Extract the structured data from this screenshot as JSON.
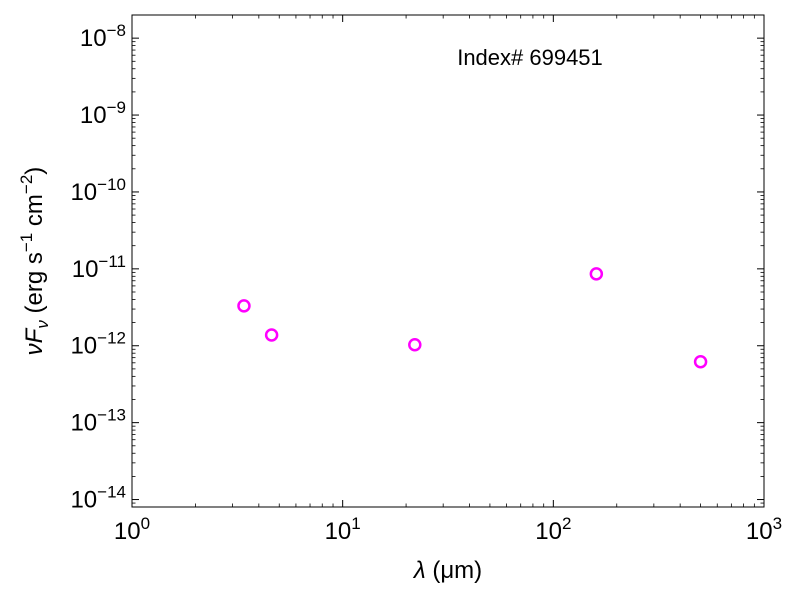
{
  "chart_data": {
    "type": "scatter",
    "annotation": "Index# 699451",
    "xlabel": {
      "symbol": "λ",
      "unit": " (μm)"
    },
    "ylabel": {
      "pre": "ν",
      "F": "F",
      "sub": "ν",
      "mid": " (erg s",
      "exp1": "−1",
      "mid2": " cm",
      "exp2": "−2",
      "post": ")"
    },
    "xscale": "log",
    "yscale": "log",
    "xlim": [
      1,
      1000
    ],
    "ylim": [
      8e-15,
      2e-08
    ],
    "xticks": [
      {
        "value": 1,
        "base": "10",
        "exp": "0"
      },
      {
        "value": 10,
        "base": "10",
        "exp": "1"
      },
      {
        "value": 100,
        "base": "10",
        "exp": "2"
      },
      {
        "value": 1000,
        "base": "10",
        "exp": "3"
      }
    ],
    "yticks": [
      {
        "value": 1e-14,
        "base": "10",
        "exp": "−14"
      },
      {
        "value": 1e-13,
        "base": "10",
        "exp": "−13"
      },
      {
        "value": 1e-12,
        "base": "10",
        "exp": "−12"
      },
      {
        "value": 1e-11,
        "base": "10",
        "exp": "−11"
      },
      {
        "value": 1e-10,
        "base": "10",
        "exp": "−10"
      },
      {
        "value": 1e-09,
        "base": "10",
        "exp": "−9"
      },
      {
        "value": 1e-08,
        "base": "10",
        "exp": "−8"
      }
    ],
    "grid": false,
    "series": [
      {
        "marker": "open-circle",
        "color": "#ff00ff",
        "points": [
          {
            "x": 3.4,
            "y": 3.3e-12
          },
          {
            "x": 4.6,
            "y": 1.38e-12
          },
          {
            "x": 22,
            "y": 1.03e-12
          },
          {
            "x": 160,
            "y": 8.6e-12
          },
          {
            "x": 500,
            "y": 6.2e-13
          }
        ]
      }
    ]
  }
}
